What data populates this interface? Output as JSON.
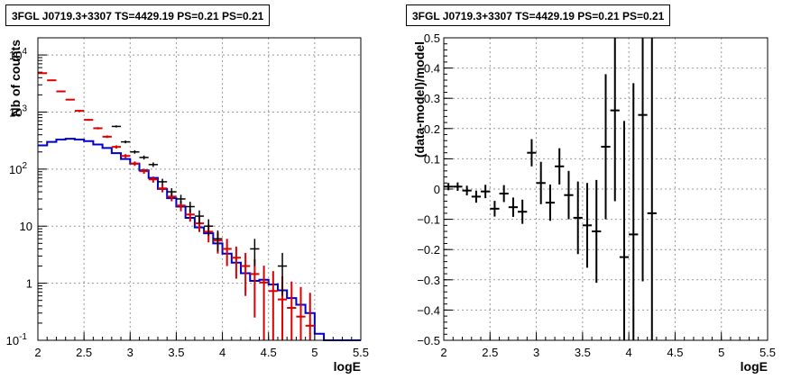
{
  "chart_data": [
    {
      "type": "histogram-with-points",
      "title": "3FGL J0719.3+3307 TS=4429.19 PS=0.21 PS=0.21",
      "xlabel": "logE",
      "ylabel": "Nb of counts",
      "xlim": [
        2,
        5.5
      ],
      "ylim": [
        0.1,
        20000
      ],
      "yscale": "log",
      "grid": true,
      "x_ticks": [
        "2",
        "2.5",
        "3",
        "3.5",
        "4",
        "4.5",
        "5",
        "5.5"
      ],
      "y_ticks": [
        {
          "value": 0.1,
          "base": "10",
          "exp": "-1"
        },
        {
          "value": 1,
          "base": "1",
          "exp": ""
        },
        {
          "value": 10,
          "base": "10",
          "exp": ""
        },
        {
          "value": 100,
          "base": "10",
          "exp": "2"
        },
        {
          "value": 1000,
          "base": "10",
          "exp": "3"
        },
        {
          "value": 10000,
          "base": "10",
          "exp": "4"
        }
      ],
      "bin_edges": [
        2.0,
        2.1,
        2.2,
        2.3,
        2.4,
        2.5,
        2.6,
        2.7,
        2.8,
        2.9,
        3.0,
        3.1,
        3.2,
        3.3,
        3.4,
        3.5,
        3.6,
        3.7,
        3.8,
        3.9,
        4.0,
        4.1,
        4.2,
        4.3,
        4.4,
        4.5,
        4.6,
        4.7,
        4.8,
        4.9,
        5.0,
        5.1,
        5.2,
        5.3,
        5.4,
        5.5
      ],
      "series": [
        {
          "color": "#0000cc",
          "style": "step",
          "values": [
            260,
            300,
            330,
            340,
            330,
            310,
            270,
            235,
            190,
            150,
            125,
            95,
            70,
            45,
            31,
            22,
            14,
            9.5,
            7.5,
            5.0,
            3.3,
            2.3,
            1.5,
            1.1,
            1.15,
            0.95,
            0.75,
            0.55,
            0.42,
            0.3,
            0.13,
            0.1,
            0.1,
            0.1,
            0.1
          ]
        },
        {
          "color": "#dd0000",
          "style": "marker-errorbar",
          "x": [
            2.05,
            2.15,
            2.25,
            2.35,
            2.45,
            2.55,
            2.65,
            2.75,
            2.85,
            2.95,
            3.05,
            3.15,
            3.25,
            3.35,
            3.45,
            3.55,
            3.65,
            3.75,
            3.85,
            3.95,
            4.05,
            4.15,
            4.25,
            4.35,
            4.45,
            4.55,
            4.65,
            4.75,
            4.85,
            4.95
          ],
          "y": [
            4800,
            3600,
            2300,
            1650,
            1050,
            730,
            520,
            370,
            245,
            170,
            125,
            92,
            66,
            46,
            33,
            23,
            16,
            11.2,
            8.0,
            5.6,
            4.0,
            2.8,
            2.0,
            1.45,
            1.03,
            0.73,
            0.52,
            0.37,
            0.26,
            0.18
          ],
          "yerr_low": [
            70,
            60,
            48,
            40,
            32,
            27,
            23,
            19,
            15.6,
            13,
            11.1,
            9.5,
            8.1,
            6.8,
            5.7,
            4.8,
            4.0,
            3.3,
            2.8,
            2.3,
            2.0,
            1.6,
            1.4,
            1.2,
            0.95,
            0.73,
            0.52,
            0.37,
            0.26,
            0.18
          ],
          "yerr_high": [
            70,
            60,
            48,
            40,
            32,
            27,
            23,
            19,
            15.6,
            13,
            11.1,
            9.5,
            8.1,
            6.8,
            5.7,
            4.8,
            4.0,
            3.3,
            2.8,
            2.3,
            2.0,
            1.6,
            1.4,
            1.2,
            1.0,
            0.9,
            0.8,
            0.7,
            0.6,
            0.5
          ]
        },
        {
          "color": "#000000",
          "style": "cross",
          "x": [
            2.85,
            2.95,
            3.05,
            3.15,
            3.25,
            3.35,
            3.45,
            3.55,
            3.65,
            3.75,
            3.85,
            3.95,
            4.35,
            4.65
          ],
          "y": [
            560,
            300,
            200,
            160,
            120,
            60,
            40,
            30,
            22,
            15,
            10,
            6,
            4,
            2
          ],
          "yerr": [
            24,
            17,
            14,
            13,
            11,
            7.7,
            6.3,
            5.5,
            4.7,
            3.9,
            3.2,
            2.4,
            2.0,
            1.4
          ]
        }
      ]
    },
    {
      "type": "scatter-errorbar",
      "title": "3FGL J0719.3+3307 TS=4429.19 PS=0.21 PS=0.21",
      "xlabel": "logE",
      "ylabel": "(data-model)/model",
      "xlim": [
        2,
        5.5
      ],
      "ylim": [
        -0.5,
        0.5
      ],
      "grid": true,
      "x_ticks": [
        "2",
        "2.5",
        "3",
        "3.5",
        "4",
        "4.5",
        "5",
        "5.5"
      ],
      "y_ticks": [
        "-0.5",
        "-0.4",
        "-0.3",
        "-0.2",
        "-0.1",
        "0",
        "0.1",
        "0.2",
        "0.3",
        "0.4",
        "0.5"
      ],
      "points": {
        "x": [
          2.05,
          2.15,
          2.25,
          2.35,
          2.45,
          2.55,
          2.65,
          2.75,
          2.85,
          2.95,
          3.05,
          3.15,
          3.25,
          3.35,
          3.45,
          3.55,
          3.65,
          3.75,
          3.85,
          3.95,
          4.05,
          4.15,
          4.25
        ],
        "y": [
          0.008,
          0.008,
          -0.005,
          -0.025,
          -0.008,
          -0.065,
          -0.015,
          -0.06,
          -0.075,
          0.12,
          0.02,
          -0.045,
          0.075,
          -0.02,
          -0.095,
          -0.12,
          -0.14,
          0.14,
          0.26,
          -0.225,
          -0.15,
          0.245,
          -0.08
        ],
        "xerr": 0.05,
        "yerr": [
          0.012,
          0.014,
          0.016,
          0.02,
          0.022,
          0.026,
          0.028,
          0.032,
          0.04,
          0.045,
          0.07,
          0.06,
          0.06,
          0.08,
          0.12,
          0.14,
          0.17,
          0.24,
          0.3,
          0.45,
          0.5,
          0.55,
          0.6
        ]
      }
    }
  ]
}
